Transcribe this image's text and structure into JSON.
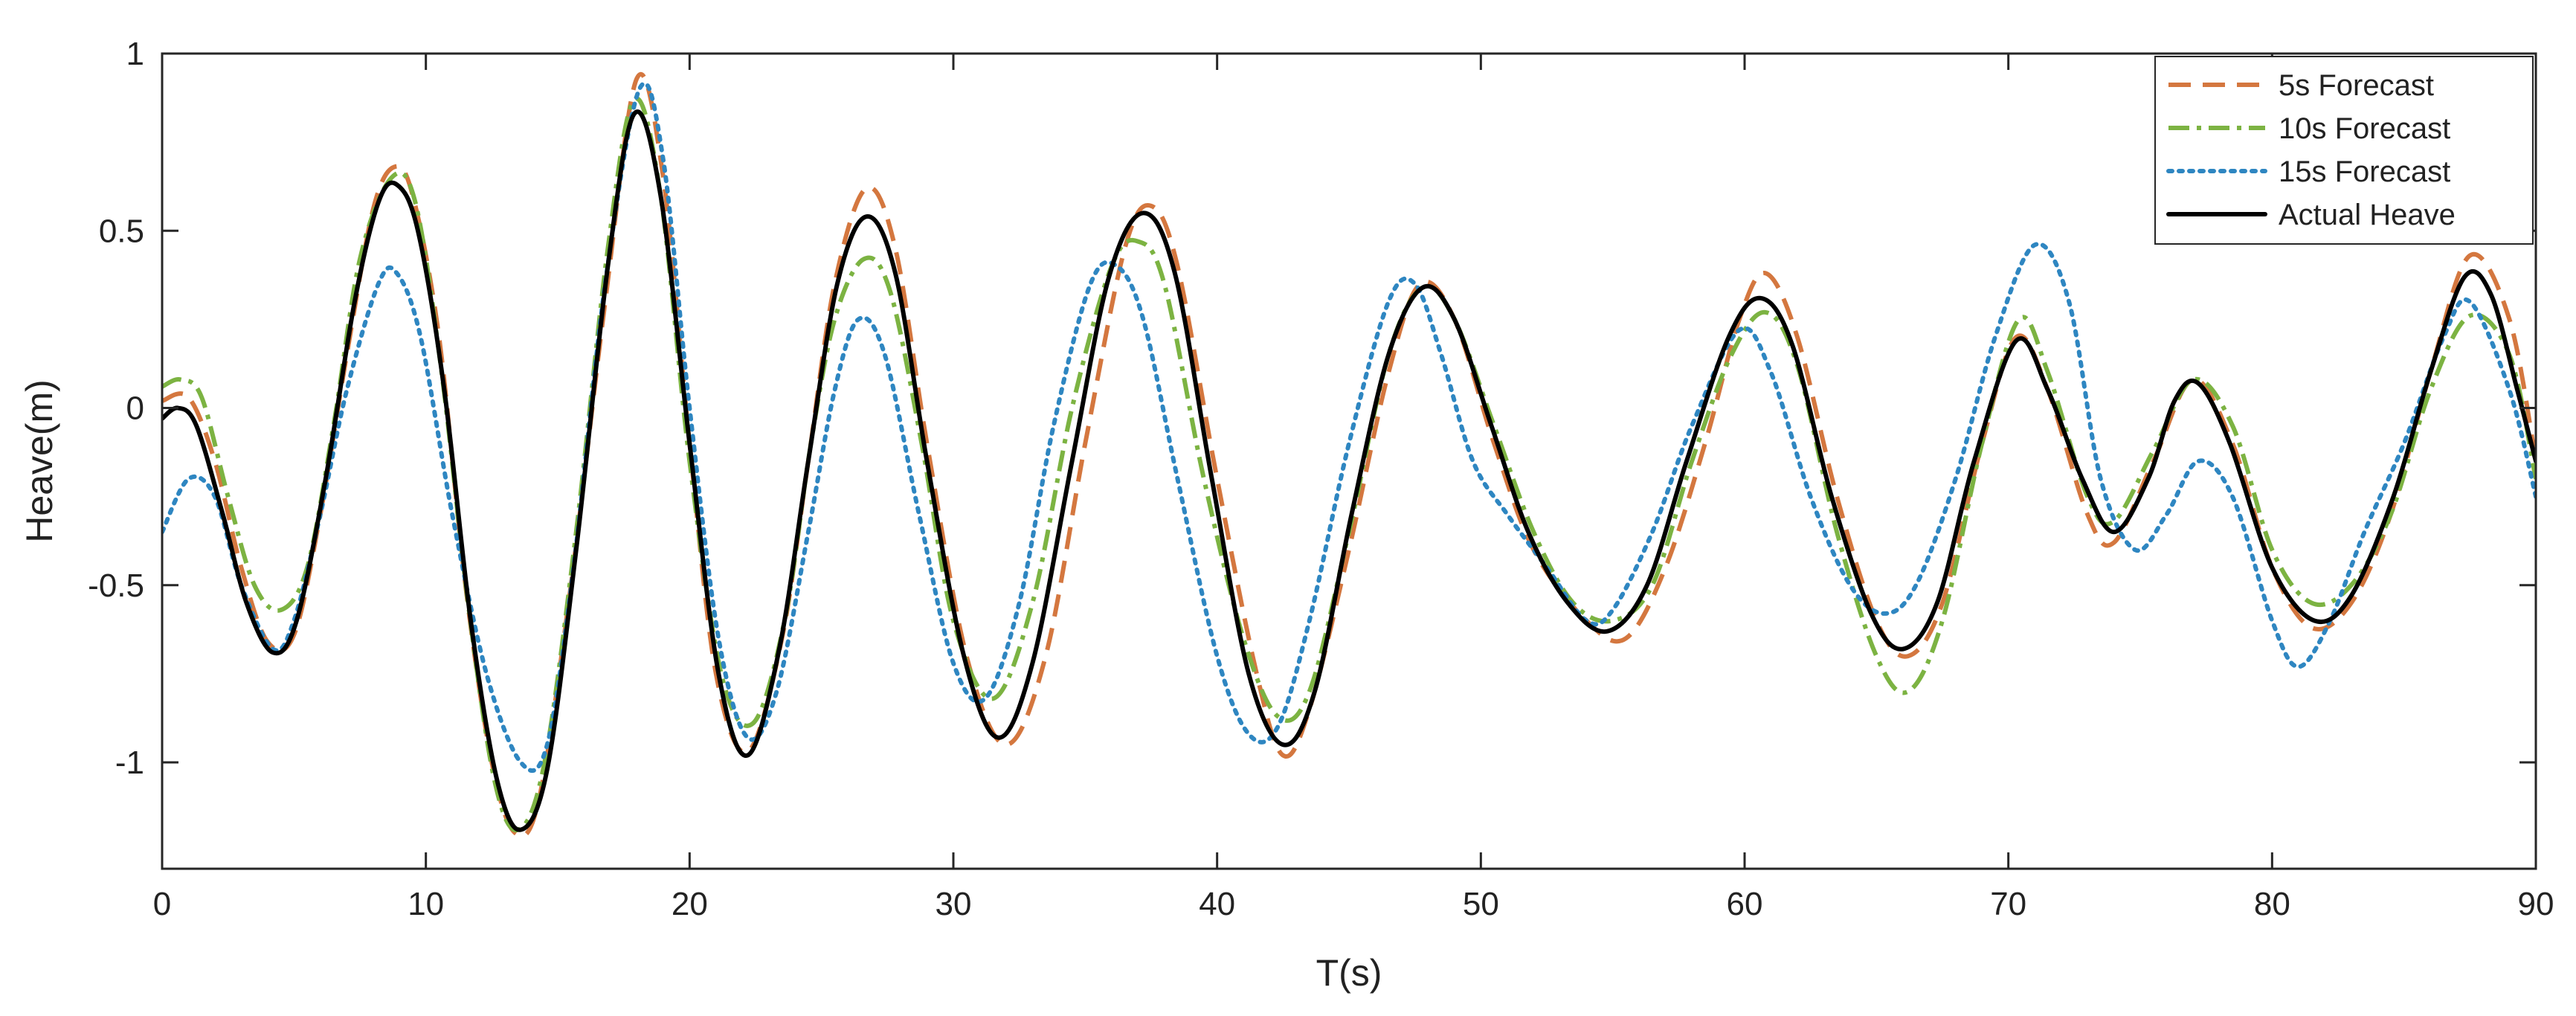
{
  "chart_data": {
    "type": "line",
    "title": "",
    "xlabel": "T(s)",
    "ylabel": "Heave(m)",
    "xlim": [
      0,
      90
    ],
    "ylim": [
      -1.3,
      1
    ],
    "xticks": [
      0,
      10,
      20,
      30,
      40,
      50,
      60,
      70,
      80,
      90
    ],
    "xtick_labels": [
      "0",
      "10",
      "20",
      "30",
      "40",
      "50",
      "60",
      "70",
      "80",
      "90"
    ],
    "yticks": [
      -1,
      -0.5,
      0,
      0.5,
      1
    ],
    "ytick_labels": [
      "-1",
      "-0.5",
      "0",
      "0.5",
      "1"
    ],
    "grid": false,
    "legend_position": "top-right",
    "series": [
      {
        "name": "5s Forecast",
        "color": "#d4773f",
        "style": "dashed",
        "points": [
          [
            0,
            0.02
          ],
          [
            1,
            0.03
          ],
          [
            2,
            -0.15
          ],
          [
            3,
            -0.45
          ],
          [
            4,
            -0.66
          ],
          [
            5,
            -0.64
          ],
          [
            6,
            -0.3
          ],
          [
            7,
            0.15
          ],
          [
            8,
            0.56
          ],
          [
            8.8,
            0.68
          ],
          [
            9.5,
            0.6
          ],
          [
            10.5,
            0.2
          ],
          [
            11.5,
            -0.5
          ],
          [
            12.5,
            -1.0
          ],
          [
            13.4,
            -1.2
          ],
          [
            14.3,
            -1.1
          ],
          [
            15.5,
            -0.5
          ],
          [
            16.8,
            0.3
          ],
          [
            18,
            0.93
          ],
          [
            19,
            0.65
          ],
          [
            20,
            -0.1
          ],
          [
            21,
            -0.75
          ],
          [
            22.2,
            -0.97
          ],
          [
            23.5,
            -0.65
          ],
          [
            24.5,
            -0.15
          ],
          [
            25.5,
            0.35
          ],
          [
            26.7,
            0.62
          ],
          [
            27.8,
            0.45
          ],
          [
            29,
            -0.1
          ],
          [
            30.5,
            -0.7
          ],
          [
            32,
            -0.95
          ],
          [
            33.5,
            -0.7
          ],
          [
            35,
            -0.1
          ],
          [
            36.5,
            0.45
          ],
          [
            37.5,
            0.57
          ],
          [
            38.5,
            0.4
          ],
          [
            40,
            -0.2
          ],
          [
            41.5,
            -0.75
          ],
          [
            42.5,
            -0.98
          ],
          [
            43.5,
            -0.85
          ],
          [
            45,
            -0.4
          ],
          [
            46.5,
            0.1
          ],
          [
            47.7,
            0.35
          ],
          [
            49,
            0.25
          ],
          [
            50.5,
            -0.1
          ],
          [
            52,
            -0.4
          ],
          [
            54,
            -0.6
          ],
          [
            55.5,
            -0.65
          ],
          [
            57,
            -0.45
          ],
          [
            58.5,
            -0.1
          ],
          [
            59.8,
            0.25
          ],
          [
            60.8,
            0.38
          ],
          [
            62,
            0.2
          ],
          [
            63.5,
            -0.25
          ],
          [
            65,
            -0.6
          ],
          [
            66.2,
            -0.7
          ],
          [
            67.5,
            -0.55
          ],
          [
            69,
            -0.1
          ],
          [
            70.3,
            0.2
          ],
          [
            71.5,
            0.05
          ],
          [
            73,
            -0.3
          ],
          [
            74,
            -0.38
          ],
          [
            75.5,
            -0.15
          ],
          [
            77,
            0.08
          ],
          [
            78.5,
            -0.1
          ],
          [
            80,
            -0.45
          ],
          [
            81.5,
            -0.62
          ],
          [
            83,
            -0.55
          ],
          [
            84.5,
            -0.3
          ],
          [
            86,
            0.1
          ],
          [
            87.5,
            0.43
          ],
          [
            89,
            0.25
          ],
          [
            90,
            -0.15
          ]
        ]
      },
      {
        "name": "10s Forecast",
        "color": "#7cb342",
        "style": "dashdot",
        "points": [
          [
            0,
            0.06
          ],
          [
            0.7,
            0.08
          ],
          [
            1.5,
            0.03
          ],
          [
            2.5,
            -0.25
          ],
          [
            3.5,
            -0.5
          ],
          [
            4.5,
            -0.57
          ],
          [
            5.5,
            -0.45
          ],
          [
            6.5,
            -0.05
          ],
          [
            7.5,
            0.42
          ],
          [
            8.7,
            0.65
          ],
          [
            9.6,
            0.58
          ],
          [
            10.6,
            0.1
          ],
          [
            11.6,
            -0.55
          ],
          [
            12.6,
            -1.05
          ],
          [
            13.5,
            -1.19
          ],
          [
            14.5,
            -1.0
          ],
          [
            15.7,
            -0.35
          ],
          [
            16.9,
            0.45
          ],
          [
            17.9,
            0.87
          ],
          [
            18.9,
            0.6
          ],
          [
            20,
            -0.15
          ],
          [
            21.2,
            -0.75
          ],
          [
            22.4,
            -0.89
          ],
          [
            23.6,
            -0.6
          ],
          [
            24.6,
            -0.1
          ],
          [
            25.5,
            0.25
          ],
          [
            26.6,
            0.42
          ],
          [
            27.6,
            0.33
          ],
          [
            28.8,
            -0.1
          ],
          [
            30,
            -0.6
          ],
          [
            31.5,
            -0.82
          ],
          [
            33,
            -0.55
          ],
          [
            34.5,
            0.0
          ],
          [
            36,
            0.4
          ],
          [
            37,
            0.47
          ],
          [
            38,
            0.35
          ],
          [
            39.5,
            -0.2
          ],
          [
            41,
            -0.65
          ],
          [
            42.3,
            -0.87
          ],
          [
            43.5,
            -0.8
          ],
          [
            45,
            -0.35
          ],
          [
            46.5,
            0.15
          ],
          [
            47.8,
            0.34
          ],
          [
            49,
            0.25
          ],
          [
            50.5,
            -0.05
          ],
          [
            52,
            -0.35
          ],
          [
            53.5,
            -0.55
          ],
          [
            55,
            -0.6
          ],
          [
            56.5,
            -0.5
          ],
          [
            58,
            -0.15
          ],
          [
            59.5,
            0.15
          ],
          [
            60.8,
            0.27
          ],
          [
            62,
            0.12
          ],
          [
            63.5,
            -0.35
          ],
          [
            65,
            -0.7
          ],
          [
            66.2,
            -0.8
          ],
          [
            67.5,
            -0.6
          ],
          [
            69,
            -0.1
          ],
          [
            70.4,
            0.25
          ],
          [
            71.5,
            0.1
          ],
          [
            73,
            -0.25
          ],
          [
            74,
            -0.32
          ],
          [
            75.5,
            -0.12
          ],
          [
            77,
            0.08
          ],
          [
            78.5,
            -0.05
          ],
          [
            80,
            -0.4
          ],
          [
            81.5,
            -0.55
          ],
          [
            83,
            -0.5
          ],
          [
            84.5,
            -0.3
          ],
          [
            86,
            0.05
          ],
          [
            87.5,
            0.26
          ],
          [
            89,
            0.15
          ],
          [
            90,
            -0.2
          ]
        ]
      },
      {
        "name": "15s Forecast",
        "color": "#2e86c1",
        "style": "dotted",
        "points": [
          [
            0,
            -0.35
          ],
          [
            1,
            -0.2
          ],
          [
            2,
            -0.25
          ],
          [
            3,
            -0.5
          ],
          [
            4.2,
            -0.68
          ],
          [
            5,
            -0.6
          ],
          [
            6,
            -0.3
          ],
          [
            7,
            0.05
          ],
          [
            8.2,
            0.35
          ],
          [
            8.9,
            0.38
          ],
          [
            9.8,
            0.2
          ],
          [
            11,
            -0.3
          ],
          [
            12.3,
            -0.75
          ],
          [
            13.6,
            -1.0
          ],
          [
            14.6,
            -0.95
          ],
          [
            15.6,
            -0.45
          ],
          [
            16.8,
            0.35
          ],
          [
            18.1,
            0.9
          ],
          [
            19,
            0.7
          ],
          [
            20,
            0.0
          ],
          [
            21.1,
            -0.65
          ],
          [
            22.2,
            -0.93
          ],
          [
            23.3,
            -0.8
          ],
          [
            24.5,
            -0.35
          ],
          [
            25.5,
            0.05
          ],
          [
            26.4,
            0.25
          ],
          [
            27.4,
            0.15
          ],
          [
            28.7,
            -0.3
          ],
          [
            30,
            -0.72
          ],
          [
            31.2,
            -0.82
          ],
          [
            32.5,
            -0.55
          ],
          [
            33.8,
            -0.05
          ],
          [
            35.2,
            0.35
          ],
          [
            36.2,
            0.4
          ],
          [
            37.2,
            0.25
          ],
          [
            38.5,
            -0.2
          ],
          [
            40,
            -0.7
          ],
          [
            41.2,
            -0.92
          ],
          [
            42.3,
            -0.9
          ],
          [
            43.5,
            -0.6
          ],
          [
            45,
            -0.1
          ],
          [
            46.5,
            0.3
          ],
          [
            47.5,
            0.35
          ],
          [
            48.5,
            0.15
          ],
          [
            49.7,
            -0.15
          ],
          [
            51,
            -0.3
          ],
          [
            52.5,
            -0.45
          ],
          [
            54,
            -0.6
          ],
          [
            55,
            -0.57
          ],
          [
            56.5,
            -0.35
          ],
          [
            58,
            -0.05
          ],
          [
            59.8,
            0.22
          ],
          [
            61,
            0.1
          ],
          [
            62.5,
            -0.25
          ],
          [
            64,
            -0.5
          ],
          [
            65.3,
            -0.58
          ],
          [
            66.5,
            -0.5
          ],
          [
            68,
            -0.2
          ],
          [
            69.5,
            0.2
          ],
          [
            71,
            0.46
          ],
          [
            72.3,
            0.3
          ],
          [
            73.5,
            -0.2
          ],
          [
            74.8,
            -0.4
          ],
          [
            76,
            -0.3
          ],
          [
            77.2,
            -0.15
          ],
          [
            78.5,
            -0.25
          ],
          [
            80,
            -0.6
          ],
          [
            81,
            -0.73
          ],
          [
            82.2,
            -0.6
          ],
          [
            83.5,
            -0.35
          ],
          [
            85,
            -0.1
          ],
          [
            86.5,
            0.2
          ],
          [
            87.5,
            0.3
          ],
          [
            89,
            0.05
          ],
          [
            90,
            -0.25
          ]
        ]
      },
      {
        "name": "Actual Heave",
        "color": "#000000",
        "style": "solid",
        "points": [
          [
            0,
            -0.03
          ],
          [
            0.6,
            0.0
          ],
          [
            1.3,
            -0.05
          ],
          [
            2.3,
            -0.3
          ],
          [
            3.2,
            -0.55
          ],
          [
            4.2,
            -0.69
          ],
          [
            5.1,
            -0.6
          ],
          [
            6.2,
            -0.2
          ],
          [
            7.3,
            0.3
          ],
          [
            8.2,
            0.58
          ],
          [
            8.9,
            0.63
          ],
          [
            9.7,
            0.5
          ],
          [
            10.7,
            0.05
          ],
          [
            11.7,
            -0.6
          ],
          [
            12.7,
            -1.05
          ],
          [
            13.6,
            -1.19
          ],
          [
            14.6,
            -1.02
          ],
          [
            15.7,
            -0.4
          ],
          [
            16.9,
            0.4
          ],
          [
            17.9,
            0.83
          ],
          [
            18.9,
            0.6
          ],
          [
            20,
            -0.1
          ],
          [
            21.1,
            -0.75
          ],
          [
            22.2,
            -0.98
          ],
          [
            23.4,
            -0.68
          ],
          [
            24.5,
            -0.15
          ],
          [
            25.6,
            0.35
          ],
          [
            26.7,
            0.54
          ],
          [
            27.8,
            0.38
          ],
          [
            29,
            -0.15
          ],
          [
            30.4,
            -0.7
          ],
          [
            31.7,
            -0.93
          ],
          [
            33,
            -0.72
          ],
          [
            34.5,
            -0.15
          ],
          [
            35.9,
            0.37
          ],
          [
            37.2,
            0.55
          ],
          [
            38.4,
            0.38
          ],
          [
            39.8,
            -0.2
          ],
          [
            41.2,
            -0.75
          ],
          [
            42.5,
            -0.95
          ],
          [
            43.7,
            -0.8
          ],
          [
            45.1,
            -0.3
          ],
          [
            46.5,
            0.15
          ],
          [
            47.8,
            0.34
          ],
          [
            49,
            0.25
          ],
          [
            50.4,
            -0.05
          ],
          [
            51.8,
            -0.35
          ],
          [
            53.3,
            -0.55
          ],
          [
            54.8,
            -0.63
          ],
          [
            56.3,
            -0.5
          ],
          [
            57.8,
            -0.15
          ],
          [
            59.4,
            0.2
          ],
          [
            60.6,
            0.31
          ],
          [
            61.8,
            0.18
          ],
          [
            63.3,
            -0.25
          ],
          [
            64.8,
            -0.58
          ],
          [
            66,
            -0.68
          ],
          [
            67.3,
            -0.55
          ],
          [
            68.7,
            -0.15
          ],
          [
            70.3,
            0.19
          ],
          [
            71.5,
            0.05
          ],
          [
            72.8,
            -0.2
          ],
          [
            74,
            -0.35
          ],
          [
            75.3,
            -0.2
          ],
          [
            76.3,
            0.02
          ],
          [
            77.2,
            0.07
          ],
          [
            78.4,
            -0.1
          ],
          [
            80,
            -0.45
          ],
          [
            81.6,
            -0.6
          ],
          [
            83,
            -0.53
          ],
          [
            84.6,
            -0.25
          ],
          [
            86,
            0.1
          ],
          [
            87.3,
            0.37
          ],
          [
            88.3,
            0.32
          ],
          [
            89.3,
            0.05
          ],
          [
            90,
            -0.15
          ]
        ]
      }
    ]
  }
}
